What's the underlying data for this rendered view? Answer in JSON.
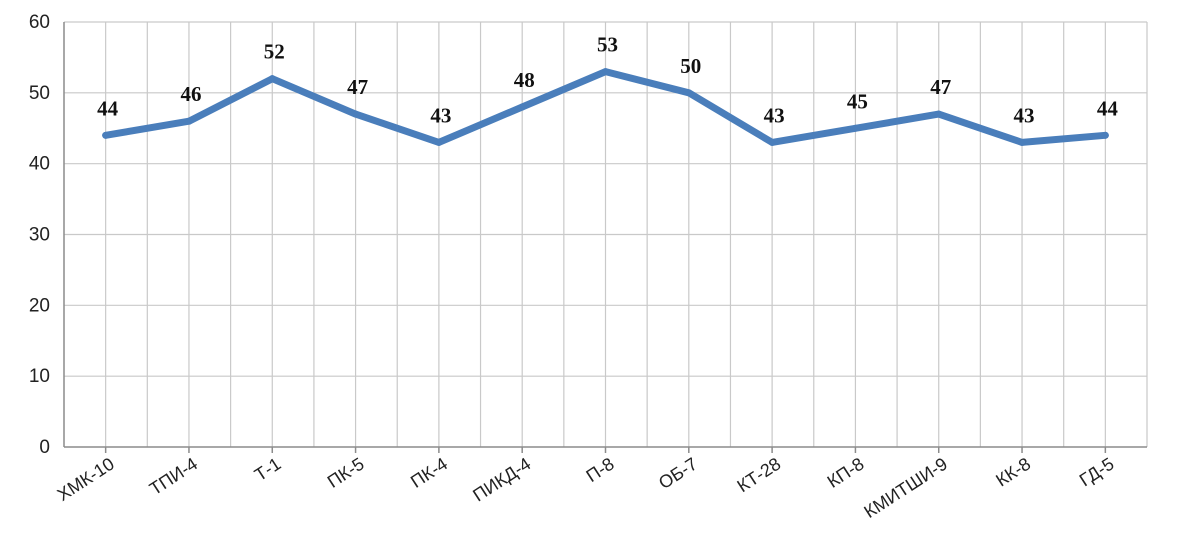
{
  "chart_data": {
    "type": "line",
    "categories": [
      "ХМК-10",
      "ТПИ-4",
      "Т-1",
      "ПК-5",
      "ПК-4",
      "ПИКД-4",
      "П-8",
      "ОБ-7",
      "КТ-28",
      "КП-8",
      "КМИТШИ-9",
      "КК-8",
      "ГД-5"
    ],
    "series": [
      {
        "values": [
          44,
          46,
          52,
          47,
          43,
          48,
          53,
          50,
          43,
          45,
          47,
          43,
          44
        ]
      }
    ],
    "y_ticks": [
      "0",
      "10",
      "20",
      "30",
      "40",
      "50",
      "60"
    ],
    "ylim": [
      0,
      60
    ],
    "grid": true,
    "line_color": "#4a7ebb",
    "data_labels": true
  }
}
